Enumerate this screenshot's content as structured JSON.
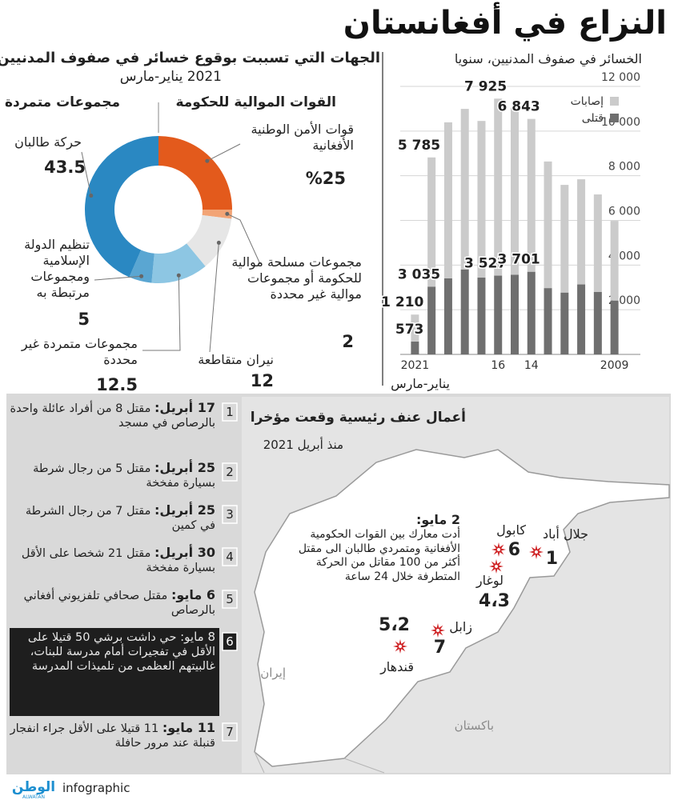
{
  "title": "النزاع في أفغانستان",
  "chart_data": [
    {
      "type": "pie",
      "donut": true,
      "title": "الجهات التي تسببت بوقوع خسائر في صفوف المدنيين",
      "subtitle": "2021 يناير-مارس",
      "groups": [
        "القوات الموالية للحكومة",
        "مجموعات متمردة"
      ],
      "categories": [
        "قوات الأمن الوطنية الأفغانية",
        "مجموعات مسلحة موالية للحكومة أو مجموعات موالية غير محددة",
        "نيران متقاطعة",
        "مجموعات متمردة غير محددة",
        "تنظيم الدولة الإسلامية ومجموعات مرتبطة به",
        "حركة طالبان"
      ],
      "values": [
        25,
        2,
        12,
        12.5,
        5,
        43.5
      ],
      "value_labels": [
        "%25",
        "2",
        "12",
        "12.5",
        "5",
        "43.5"
      ],
      "colors": [
        "#e35a1c",
        "#f2a476",
        "#e6e6e6",
        "#8dc6e3",
        "#5aa6d2",
        "#2a88c2"
      ]
    },
    {
      "type": "bar",
      "stacked": true,
      "title": "الخسائر في صفوف المدنيين، سنويا",
      "categories": [
        "2021",
        null,
        null,
        null,
        null,
        "16",
        null,
        "14",
        null,
        null,
        null,
        null,
        "2009"
      ],
      "x_label": "يناير-مارس",
      "series": [
        {
          "name": "قتلى",
          "color": "#6f6f6f",
          "values": [
            573,
            3035,
            3403,
            3804,
            3438,
            3527,
            3565,
            3701,
            2969,
            2769,
            3133,
            2794,
            2412
          ],
          "value_labels": [
            "573",
            "3 035",
            null,
            null,
            null,
            "3 527",
            null,
            "3 701",
            null,
            null,
            null,
            null,
            null
          ]
        },
        {
          "name": "إصابات",
          "color": "#cbcbcb",
          "values": [
            1210,
            5785,
            6989,
            7189,
            7015,
            7925,
            7470,
            6843,
            5669,
            4821,
            4709,
            4368,
            3566
          ],
          "value_labels": [
            "1 210",
            "5 785",
            null,
            null,
            null,
            "7 925",
            null,
            "6 843",
            null,
            null,
            null,
            null,
            null
          ]
        }
      ],
      "ylim": [
        0,
        12000
      ],
      "yticks": [
        {
          "value": 2000,
          "label": "2 000"
        },
        {
          "value": 4000,
          "label": "4 000"
        },
        {
          "value": 6000,
          "label": "6 000"
        },
        {
          "value": 8000,
          "label": "8 000"
        },
        {
          "value": 10000,
          "label": "10 000"
        },
        {
          "value": 12000,
          "label": "12 000"
        }
      ],
      "grid": true,
      "legend": "top-right"
    }
  ],
  "events": [
    {
      "number": "1",
      "date": "17 أبريل:",
      "text": "مقتل 8 من أفراد عائلة واحدة بالرصاص في مسجد"
    },
    {
      "number": "2",
      "date": "25 أبريل:",
      "text": "مقتل 5 من رجال شرطة بسيارة مفخخة"
    },
    {
      "number": "3",
      "date": "25 أبريل:",
      "text": "مقتل 7 من رجال الشرطة في كمين"
    },
    {
      "number": "4",
      "date": "30 أبريل:",
      "text": "مقتل 21 شخصا على الأقل بسيارة مفخخة"
    },
    {
      "number": "5",
      "date": "6 مايو:",
      "text": "مقتل صحافي تلفزيوني أفغاني بالرصاص"
    },
    {
      "number": "6",
      "date": "8 مايو:",
      "text": "حي داشت برشي 50 قتيلا على الأقل في تفجيرات أمام مدرسة للبنات، غالبيتهم العظمى من تلميذات المدرسة"
    },
    {
      "number": "7",
      "date": "11 مايو:",
      "text": "11 قتيلا على الأقل جراء انفجار قنبلة عند مرور حافلة"
    }
  ],
  "map": {
    "title": "أعمال عنف رئيسية وقعت مؤخرا",
    "subtitle": "منذ أبريل 2021",
    "annotation": {
      "date": "2 مايو:",
      "text": "أدت معارك بين القوات الحكومية الأفغانية ومتمردي طالبان الى مقتل أكثر من 100 مقاتل من الحركة المتطرفة خلال 24 ساعة"
    },
    "places": [
      {
        "name": "كابول",
        "events": "6"
      },
      {
        "name": "جلال أباد",
        "events": "1"
      },
      {
        "name": "لوغار",
        "events": "4،3"
      },
      {
        "name": "زابل",
        "events": "7"
      },
      {
        "name": "قندهار",
        "events": "5،2"
      }
    ],
    "countries": [
      "إيران",
      "باكستان"
    ]
  },
  "footer": {
    "brand": "infographic",
    "logo": "الوطن",
    "logo_latin": "ALWATAN"
  }
}
